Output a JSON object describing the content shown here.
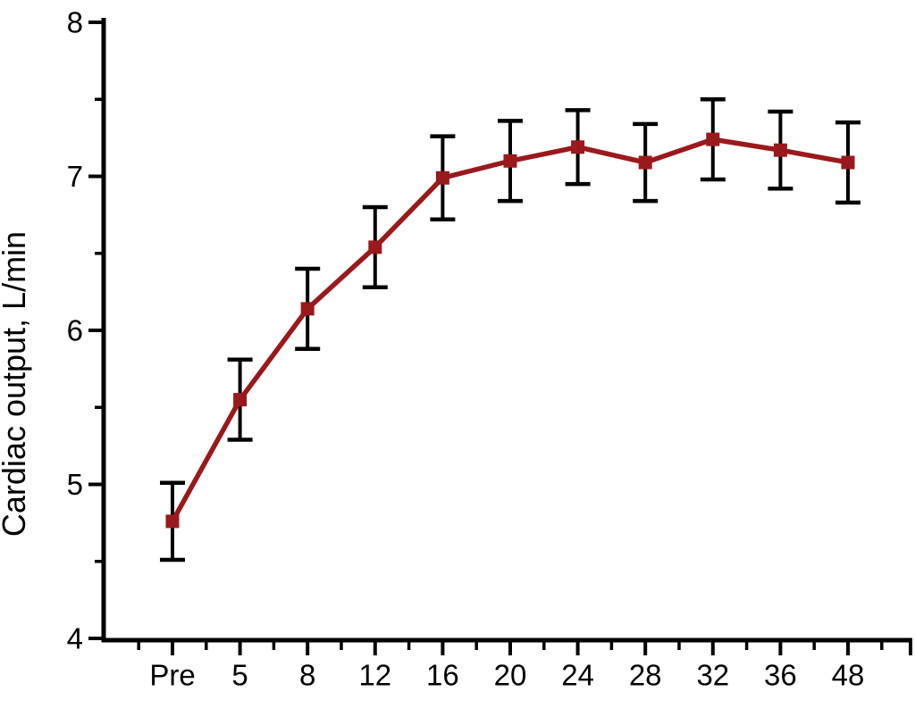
{
  "chart_data": {
    "type": "line",
    "title": "",
    "xlabel": "",
    "ylabel": "Cardiac output, L/min",
    "categories": [
      "Pre",
      "5",
      "8",
      "12",
      "16",
      "20",
      "24",
      "28",
      "32",
      "36",
      "48"
    ],
    "series": [
      {
        "name": "Cardiac output",
        "values": [
          4.76,
          5.55,
          6.14,
          6.54,
          6.99,
          7.1,
          7.19,
          7.09,
          7.24,
          7.17,
          7.09
        ],
        "errors": [
          0.25,
          0.26,
          0.26,
          0.26,
          0.27,
          0.26,
          0.24,
          0.25,
          0.26,
          0.25,
          0.26
        ]
      }
    ],
    "ylim": [
      4,
      8
    ],
    "y_major_ticks": [
      4,
      5,
      6,
      7,
      8
    ],
    "y_minor_ticks": [
      4.5,
      5.5,
      6.5,
      7.5
    ],
    "grid": false,
    "legend": false,
    "marker": "square",
    "colors": {
      "line": "#9a191c",
      "marker": "#9a191c",
      "error_bar": "#000000",
      "axis": "#000000",
      "background": "#ffffff"
    }
  }
}
